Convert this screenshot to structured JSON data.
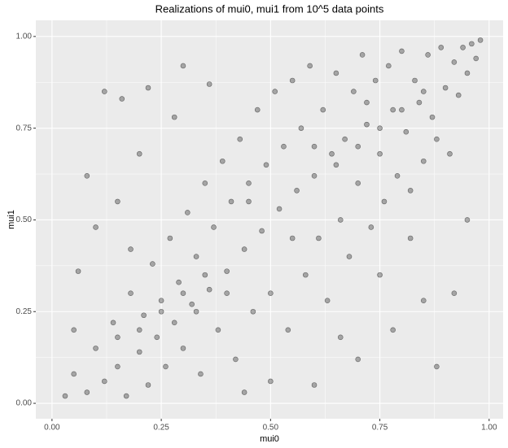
{
  "chart_data": {
    "type": "scatter",
    "title": "Realizations of mui0, mui1 from 10^5 data points",
    "x_label": "mui0",
    "y_label": "mui1",
    "color": "#000000",
    "x": [
      0.03,
      0.05,
      0.08,
      0.1,
      0.12,
      0.14,
      0.15,
      0.17,
      0.18,
      0.2,
      0.21,
      0.22,
      0.23,
      0.24,
      0.25,
      0.26,
      0.27,
      0.28,
      0.29,
      0.3,
      0.31,
      0.32,
      0.33,
      0.34,
      0.35,
      0.36,
      0.37,
      0.38,
      0.39,
      0.4,
      0.41,
      0.42,
      0.43,
      0.44,
      0.45,
      0.46,
      0.47,
      0.48,
      0.49,
      0.5,
      0.51,
      0.52,
      0.53,
      0.54,
      0.55,
      0.56,
      0.57,
      0.58,
      0.59,
      0.6,
      0.61,
      0.62,
      0.63,
      0.64,
      0.65,
      0.66,
      0.67,
      0.68,
      0.69,
      0.7,
      0.71,
      0.72,
      0.73,
      0.74,
      0.75,
      0.76,
      0.77,
      0.78,
      0.79,
      0.8,
      0.81,
      0.82,
      0.83,
      0.84,
      0.85,
      0.86,
      0.87,
      0.88,
      0.89,
      0.9,
      0.91,
      0.92,
      0.93,
      0.94,
      0.95,
      0.96,
      0.97,
      0.98,
      0.12,
      0.16,
      0.22,
      0.08,
      0.1,
      0.06,
      0.05,
      0.15,
      0.2,
      0.28,
      0.3,
      0.36,
      0.18,
      0.88,
      0.95,
      0.92,
      0.85,
      0.78,
      0.82,
      0.7,
      0.6,
      0.75,
      0.66,
      0.5,
      0.44,
      0.25,
      0.3,
      0.2,
      0.35,
      0.65,
      0.7,
      0.75,
      0.8,
      0.55,
      0.45,
      0.15,
      0.85,
      0.6,
      0.4,
      0.33,
      0.72
    ],
    "values": [
      0.02,
      0.08,
      0.03,
      0.15,
      0.06,
      0.22,
      0.1,
      0.02,
      0.3,
      0.14,
      0.24,
      0.05,
      0.38,
      0.18,
      0.28,
      0.1,
      0.45,
      0.22,
      0.33,
      0.15,
      0.52,
      0.27,
      0.4,
      0.08,
      0.6,
      0.31,
      0.48,
      0.2,
      0.66,
      0.36,
      0.55,
      0.12,
      0.72,
      0.42,
      0.6,
      0.25,
      0.8,
      0.47,
      0.65,
      0.3,
      0.85,
      0.53,
      0.7,
      0.2,
      0.88,
      0.58,
      0.75,
      0.35,
      0.92,
      0.62,
      0.45,
      0.8,
      0.28,
      0.68,
      0.9,
      0.5,
      0.72,
      0.4,
      0.85,
      0.6,
      0.95,
      0.76,
      0.48,
      0.88,
      0.68,
      0.55,
      0.92,
      0.8,
      0.62,
      0.96,
      0.74,
      0.58,
      0.88,
      0.82,
      0.66,
      0.95,
      0.78,
      0.72,
      0.97,
      0.86,
      0.68,
      0.93,
      0.84,
      0.97,
      0.9,
      0.98,
      0.94,
      0.99,
      0.85,
      0.83,
      0.86,
      0.62,
      0.48,
      0.36,
      0.2,
      0.55,
      0.68,
      0.78,
      0.92,
      0.87,
      0.42,
      0.1,
      0.5,
      0.3,
      0.28,
      0.2,
      0.45,
      0.12,
      0.05,
      0.35,
      0.18,
      0.06,
      0.03,
      0.25,
      0.3,
      0.2,
      0.35,
      0.65,
      0.7,
      0.75,
      0.8,
      0.45,
      0.55,
      0.18,
      0.85,
      0.7,
      0.3,
      0.25,
      0.82
    ],
    "xlim": [
      -0.037,
      1.032
    ],
    "ylim": [
      -0.042,
      1.044
    ],
    "xticks": [
      {
        "value": 0,
        "label": "0.00"
      },
      {
        "value": 0.25,
        "label": "0.25"
      },
      {
        "value": 0.5,
        "label": "0.50"
      },
      {
        "value": 0.75,
        "label": "0.75"
      },
      {
        "value": 1,
        "label": "1.00"
      }
    ],
    "yticks": [
      {
        "value": 0,
        "label": "0.00"
      },
      {
        "value": 0.25,
        "label": "0.25"
      },
      {
        "value": 0.5,
        "label": "0.50"
      },
      {
        "value": 0.75,
        "label": "0.75"
      },
      {
        "value": 1,
        "label": "1.00"
      }
    ],
    "grid": true
  }
}
